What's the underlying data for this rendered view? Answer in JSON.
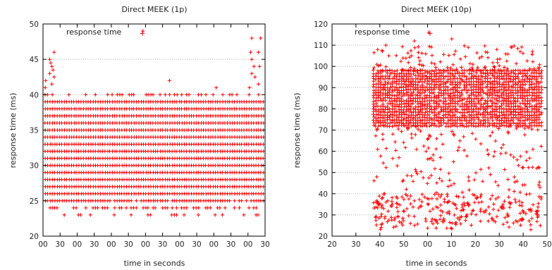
{
  "chart_data": [
    {
      "type": "scatter",
      "title": "Direct MEEK (1p)",
      "xlabel": "time in seconds",
      "ylabel": "response time (ms)",
      "ylim": [
        20,
        50
      ],
      "yticks": [
        20,
        25,
        30,
        35,
        40,
        45,
        50
      ],
      "xticks": [
        "00",
        "30",
        "00",
        "30",
        "00",
        "30",
        "00",
        "30",
        "00",
        "30",
        "00",
        "30",
        "00",
        "30"
      ],
      "grid": "horizontal dotted",
      "legend_position": "top-left",
      "marker": "+",
      "color": "#ff0000",
      "series": [
        {
          "name": "response time",
          "bands": [
            {
              "y": 23,
              "x_start": 0.03,
              "x_end": 0.98,
              "density": 0.25
            },
            {
              "y": 24,
              "x_start": 0.02,
              "x_end": 0.99,
              "density": 0.55
            },
            {
              "y": 25,
              "x_start": 0.01,
              "x_end": 0.995,
              "density": 0.85
            },
            {
              "y": 26,
              "x_start": 0.01,
              "x_end": 0.995,
              "density": 1
            },
            {
              "y": 27,
              "x_start": 0.01,
              "x_end": 0.995,
              "density": 1
            },
            {
              "y": 28,
              "x_start": 0.01,
              "x_end": 0.995,
              "density": 1
            },
            {
              "y": 29,
              "x_start": 0.01,
              "x_end": 0.995,
              "density": 1
            },
            {
              "y": 30,
              "x_start": 0.01,
              "x_end": 0.995,
              "density": 1
            },
            {
              "y": 31,
              "x_start": 0.01,
              "x_end": 0.995,
              "density": 1
            },
            {
              "y": 32,
              "x_start": 0.01,
              "x_end": 0.995,
              "density": 1
            },
            {
              "y": 33,
              "x_start": 0.01,
              "x_end": 0.995,
              "density": 1
            },
            {
              "y": 34,
              "x_start": 0.01,
              "x_end": 0.995,
              "density": 1
            },
            {
              "y": 35,
              "x_start": 0.01,
              "x_end": 0.995,
              "density": 1
            },
            {
              "y": 36,
              "x_start": 0.01,
              "x_end": 0.995,
              "density": 1
            },
            {
              "y": 37,
              "x_start": 0.01,
              "x_end": 0.995,
              "density": 1
            },
            {
              "y": 38,
              "x_start": 0.01,
              "x_end": 0.995,
              "density": 1
            },
            {
              "y": 39,
              "x_start": 0.01,
              "x_end": 0.995,
              "density": 1
            },
            {
              "y": 40,
              "x_start": 0.01,
              "x_end": 0.99,
              "density": 0.3
            }
          ],
          "outliers": [
            {
              "t": 0.01,
              "y": 41
            },
            {
              "t": 0.012,
              "y": 42
            },
            {
              "t": 0.03,
              "y": 43
            },
            {
              "t": 0.04,
              "y": 44
            },
            {
              "t": 0.03,
              "y": 45
            },
            {
              "t": 0.05,
              "y": 46
            },
            {
              "t": 0.035,
              "y": 44.5
            },
            {
              "t": 0.045,
              "y": 43.5
            },
            {
              "t": 0.05,
              "y": 42.5
            },
            {
              "t": 0.04,
              "y": 41.5
            },
            {
              "t": 0.45,
              "y": 49
            },
            {
              "t": 0.57,
              "y": 42
            },
            {
              "t": 0.78,
              "y": 41
            },
            {
              "t": 0.93,
              "y": 41
            },
            {
              "t": 0.94,
              "y": 43
            },
            {
              "t": 0.95,
              "y": 44
            },
            {
              "t": 0.94,
              "y": 45
            },
            {
              "t": 0.935,
              "y": 46
            },
            {
              "t": 0.94,
              "y": 48
            },
            {
              "t": 0.98,
              "y": 48
            },
            {
              "t": 0.97,
              "y": 46
            },
            {
              "t": 0.975,
              "y": 44
            },
            {
              "t": 0.955,
              "y": 42.5
            },
            {
              "t": 0.97,
              "y": 41.5
            }
          ]
        }
      ]
    },
    {
      "type": "scatter",
      "title": "Direct MEEK (10p)",
      "xlabel": "time in seconds",
      "ylabel": "response time (ms)",
      "ylim": [
        20,
        120
      ],
      "yticks": [
        20,
        30,
        40,
        50,
        60,
        70,
        80,
        90,
        100,
        110,
        120
      ],
      "xlim": [
        20,
        50
      ],
      "xticks": [
        "20",
        "30",
        "40",
        "50",
        "00",
        "10",
        "20",
        "30",
        "40",
        "50"
      ],
      "xtick_positions": [
        20,
        23.33,
        26.67,
        30,
        33.33,
        36.67,
        40,
        43.33,
        46.67,
        50
      ],
      "grid": "horizontal dotted",
      "legend_position": "top-left",
      "marker": "+",
      "color": "#ff0000",
      "series": [
        {
          "name": "response time",
          "x_range": [
            25.8,
            49.2
          ],
          "dense_band": [
            72,
            98
          ],
          "dense_columns": 72,
          "sparse_range": [
            23,
            72
          ],
          "sparse_points": 420,
          "top_scatter_range": [
            98,
            110
          ],
          "top_scatter_points": 110,
          "outliers": [
            {
              "x": 33.5,
              "y": 116
            },
            {
              "x": 36.7,
              "y": 113
            },
            {
              "x": 27.5,
              "y": 110
            },
            {
              "x": 31.5,
              "y": 112
            },
            {
              "x": 39,
              "y": 109
            },
            {
              "x": 43,
              "y": 108
            }
          ]
        }
      ]
    }
  ]
}
